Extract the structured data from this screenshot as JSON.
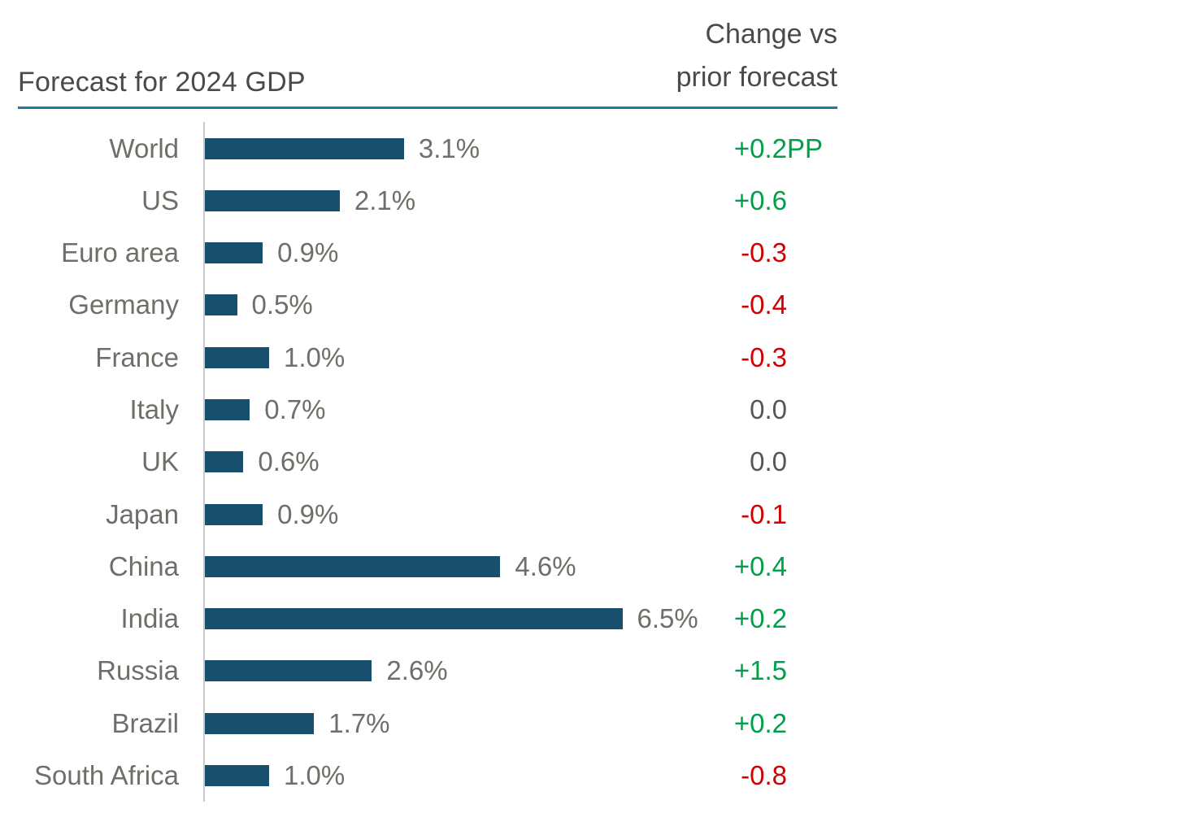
{
  "chart_data": {
    "type": "bar",
    "orientation": "horizontal",
    "title": "Forecast for 2024 GDP",
    "change_header": {
      "line1": "Change vs",
      "line2": "prior forecast"
    },
    "categories": [
      "World",
      "US",
      "Euro area",
      "Germany",
      "France",
      "Italy",
      "UK",
      "Japan",
      "China",
      "India",
      "Russia",
      "Brazil",
      "South Africa"
    ],
    "values": [
      3.1,
      2.1,
      0.9,
      0.5,
      1.0,
      0.7,
      0.6,
      0.9,
      4.6,
      6.5,
      2.6,
      1.7,
      1.0
    ],
    "value_labels": [
      "3.1%",
      "2.1%",
      "0.9%",
      "0.5%",
      "1.0%",
      "0.7%",
      "0.6%",
      "0.9%",
      "4.6%",
      "6.5%",
      "2.6%",
      "1.7%",
      "1.0%"
    ],
    "changes": [
      {
        "text": "+0.2",
        "suffix": "PP",
        "direction": "up"
      },
      {
        "text": "+0.6",
        "suffix": "",
        "direction": "up"
      },
      {
        "text": "-0.3",
        "suffix": "",
        "direction": "down"
      },
      {
        "text": "-0.4",
        "suffix": "",
        "direction": "down"
      },
      {
        "text": "-0.3",
        "suffix": "",
        "direction": "down"
      },
      {
        "text": "0.0",
        "suffix": "",
        "direction": "neutral"
      },
      {
        "text": "0.0",
        "suffix": "",
        "direction": "neutral"
      },
      {
        "text": "-0.1",
        "suffix": "",
        "direction": "down"
      },
      {
        "text": "+0.4",
        "suffix": "",
        "direction": "up"
      },
      {
        "text": "+0.2",
        "suffix": "",
        "direction": "up"
      },
      {
        "text": "+1.5",
        "suffix": "",
        "direction": "up"
      },
      {
        "text": "+0.2",
        "suffix": "",
        "direction": "up"
      },
      {
        "text": "-0.8",
        "suffix": "",
        "direction": "down"
      }
    ],
    "xlim": [
      0,
      7
    ],
    "grid": false,
    "legend": "none",
    "colors": {
      "bar": "#184f6d",
      "positive_change": "#00a04a",
      "negative_change": "#d00000",
      "neutral_change": "#555657",
      "category_label": "#6f6e68",
      "title_text": "#4a4a4c",
      "header_rule": "#1b7ba3",
      "axis_line": "#c9c9c9"
    }
  }
}
